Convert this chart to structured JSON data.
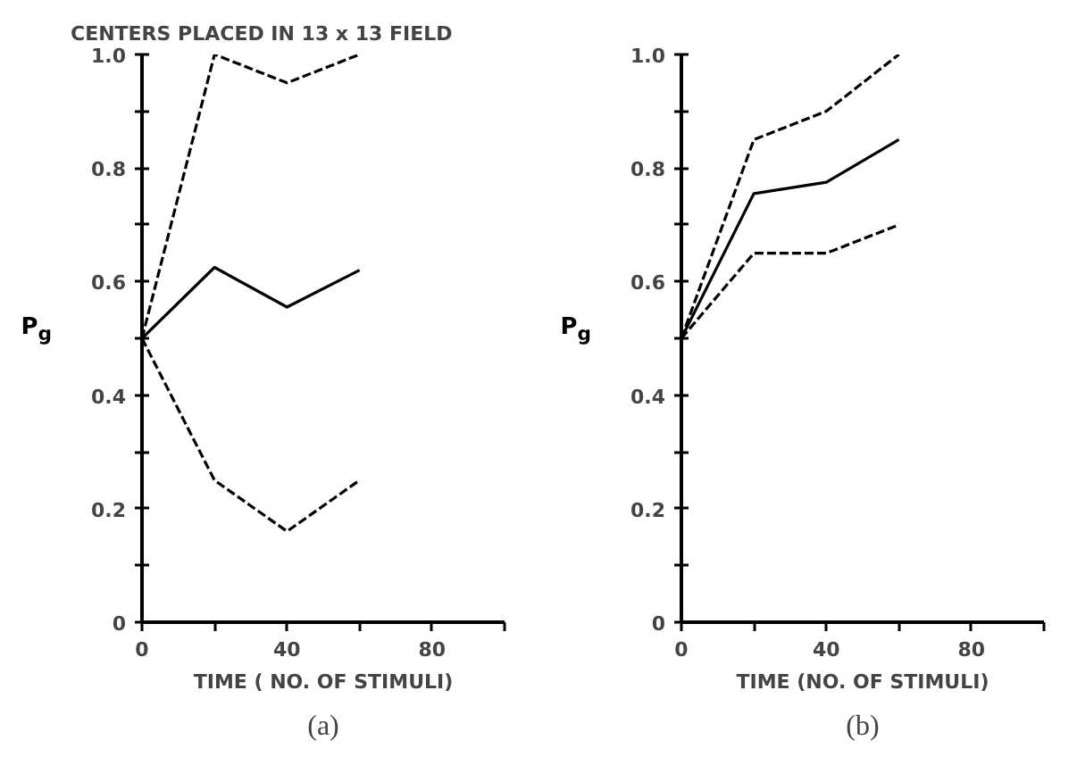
{
  "chart_data": [
    {
      "type": "line",
      "title": "CENTERS PLACED IN 13 x 13 FIELD",
      "xlabel": "TIME ( NO. OF STIMULI)",
      "ylabel": "P$_{g}$",
      "annotations": [
        "(a)"
      ],
      "x": [
        0,
        20,
        40,
        60
      ],
      "xlim": [
        0,
        100
      ],
      "ylim": [
        0,
        1
      ],
      "xticks": [
        0,
        {
          "value": 20,
          "label": null
        },
        40,
        {
          "value": 60,
          "label": null
        },
        80,
        {
          "value": 100,
          "label": null
        }
      ],
      "yticks": [
        0,
        {
          "value": 0.1,
          "label": null
        },
        {
          "value": 0.2,
          "label": "0.2"
        },
        {
          "value": 0.3,
          "label": null
        },
        {
          "value": 0.4,
          "label": "0.4"
        },
        {
          "value": 0.5,
          "label": null
        },
        {
          "value": 0.6,
          "label": "0.6"
        },
        {
          "value": 0.7,
          "label": null
        },
        {
          "value": 0.8,
          "label": "0.8"
        },
        {
          "value": 0.9,
          "label": null
        },
        {
          "value": 1,
          "label": "1.0"
        }
      ],
      "grid": false,
      "marker": "none",
      "series": [
        {
          "color": "#000000",
          "line_style": "dashed",
          "values": [
            0.5,
            1.0,
            0.95,
            1.0
          ]
        },
        {
          "color": "#000000",
          "line_style": "solid",
          "values": [
            0.5,
            0.625,
            0.555,
            0.62
          ]
        },
        {
          "color": "#000000",
          "line_style": "dashed",
          "values": [
            0.5,
            0.25,
            0.16,
            0.25
          ]
        }
      ]
    },
    {
      "type": "line",
      "xlabel": "TIME (NO. OF STIMULI)",
      "ylabel": "P$_{g}$",
      "annotations": [
        "(b)"
      ],
      "x": [
        0,
        20,
        40,
        60
      ],
      "xlim": [
        0,
        100
      ],
      "ylim": [
        0,
        1
      ],
      "xticks": [
        0,
        {
          "value": 20,
          "label": null
        },
        40,
        {
          "value": 60,
          "label": null
        },
        80,
        {
          "value": 100,
          "label": null
        }
      ],
      "yticks": [
        0,
        {
          "value": 0.1,
          "label": null
        },
        {
          "value": 0.2,
          "label": "0.2"
        },
        {
          "value": 0.3,
          "label": null
        },
        {
          "value": 0.4,
          "label": "0.4"
        },
        {
          "value": 0.5,
          "label": null
        },
        {
          "value": 0.6,
          "label": "0.6"
        },
        {
          "value": 0.7,
          "label": null
        },
        {
          "value": 0.8,
          "label": "0.8"
        },
        {
          "value": 0.9,
          "label": null
        },
        {
          "value": 1,
          "label": "1.0"
        }
      ],
      "grid": false,
      "marker": "none",
      "series": [
        {
          "color": "#000000",
          "line_style": "dashed",
          "values": [
            0.5,
            0.85,
            0.9,
            1.0
          ]
        },
        {
          "color": "#000000",
          "line_style": "solid",
          "values": [
            0.5,
            0.755,
            0.775,
            0.85
          ]
        },
        {
          "color": "#000000",
          "line_style": "dashed",
          "values": [
            0.5,
            0.65,
            0.65,
            0.7
          ]
        }
      ]
    }
  ]
}
